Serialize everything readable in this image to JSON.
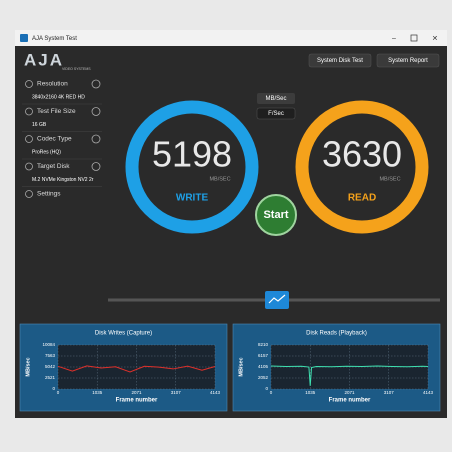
{
  "window": {
    "title": "AJA System Test"
  },
  "logo": {
    "name": "AJA",
    "tagline": "VIDEO SYSTEMS"
  },
  "buttons": {
    "disk_test": "System Disk Test",
    "report": "System Report",
    "mbsec": "MB/Sec",
    "fsec": "F/Sec",
    "start": "Start"
  },
  "sidebar": [
    {
      "label": "Resolution",
      "value": "3840x2160 4K RED HD"
    },
    {
      "label": "Test File Size",
      "value": "16 GB"
    },
    {
      "label": "Codec Type",
      "value": "ProRes (HQ)"
    },
    {
      "label": "Target Disk",
      "value": "M.2 NVMe Kingston NV2 2r"
    },
    {
      "label": "Settings"
    }
  ],
  "gauges": [
    {
      "value": 5198,
      "unit": "MB/SEC",
      "label": "WRITE",
      "color": "#1ea0e6"
    },
    {
      "value": 3630,
      "unit": "MB/SEC",
      "label": "READ",
      "color": "#f5a21b"
    }
  ],
  "chart_data": [
    {
      "type": "line",
      "title": "Disk Writes (Capture)",
      "y_label": "MB/sec",
      "x_label": "Frame number",
      "x": [
        0,
        380,
        760,
        1140,
        1520,
        1900,
        2280,
        2660,
        3040,
        3420,
        3800,
        4143
      ],
      "series": [
        {
          "color": "#e0302a",
          "values": [
            5200,
            4100,
            5300,
            4800,
            5100,
            3900,
            5200,
            5000,
            4600,
            5250,
            4300,
            5150
          ]
        }
      ],
      "xlim": [
        0,
        4143
      ],
      "ylim": [
        0,
        10084
      ],
      "xticks": [
        0,
        1035,
        2071,
        3107,
        4143
      ],
      "yticks": [
        0,
        2521,
        5042,
        7563,
        10084
      ],
      "grid": true
    },
    {
      "type": "line",
      "title": "Disk Reads (Playback)",
      "y_label": "MB/sec",
      "x_label": "Frame number",
      "x": [
        0,
        400,
        800,
        1000,
        1035,
        1070,
        1200,
        1600,
        2000,
        2400,
        2800,
        3200,
        3600,
        4000,
        4143
      ],
      "series": [
        {
          "color": "#3fe0b0",
          "values": [
            4300,
            4200,
            4250,
            4100,
            600,
            4000,
            4200,
            4150,
            4250,
            4200,
            4300,
            4200,
            4150,
            4250,
            4200
          ]
        }
      ],
      "xlim": [
        0,
        4143
      ],
      "ylim": [
        0,
        8210
      ],
      "xticks": [
        0,
        1035,
        2071,
        3107,
        4143
      ],
      "yticks": [
        0,
        2052,
        4105,
        6157,
        8210
      ],
      "grid": true
    }
  ]
}
